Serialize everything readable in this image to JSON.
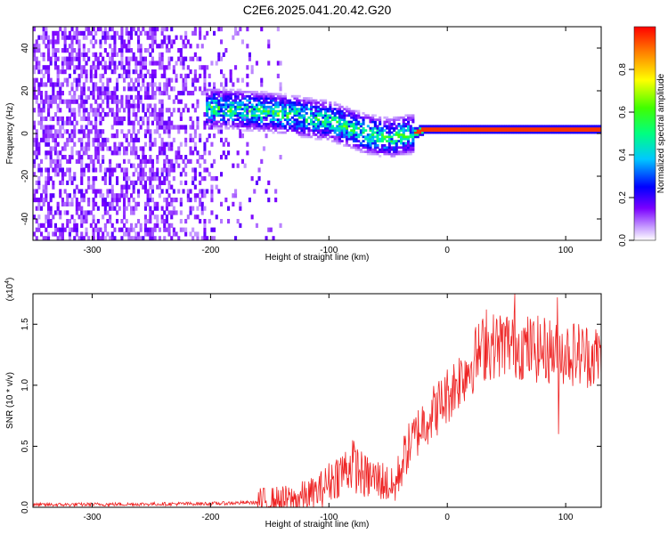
{
  "title": "C2E6.2025.041.20.42.G20",
  "chart_data": [
    {
      "type": "heatmap",
      "xlabel": "Height of straight line (km)",
      "ylabel": "Frequency (Hz)",
      "xlim": [
        -350,
        130
      ],
      "ylim": [
        -50,
        50
      ],
      "x_ticks": [
        -300,
        -200,
        -100,
        0,
        100
      ],
      "x_tick_labels": [
        "-300",
        "-200",
        "-100",
        "0",
        "100"
      ],
      "y_ticks": [
        -40,
        -20,
        0,
        20,
        40
      ],
      "y_tick_labels": [
        "-40",
        "-20",
        "0",
        "20",
        "40"
      ],
      "colorbar": {
        "label": "Normalized spectral amplitude",
        "range": [
          0,
          1
        ],
        "ticks": [
          0.0,
          0.2,
          0.4,
          0.6,
          0.8
        ],
        "tick_labels": [
          "0.0",
          "0.2",
          "0.4",
          "0.6",
          "0.8"
        ]
      },
      "features": {
        "noise_region_x": [
          -350,
          -140
        ],
        "signal_start_x": -205,
        "carrier_track": [
          {
            "x": -200,
            "y": 12
          },
          {
            "x": -150,
            "y": 10
          },
          {
            "x": -100,
            "y": 6
          },
          {
            "x": -70,
            "y": 0
          },
          {
            "x": -50,
            "y": -2
          },
          {
            "x": -30,
            "y": 0
          },
          {
            "x": -20,
            "y": 2
          },
          {
            "x": 0,
            "y": 2
          },
          {
            "x": 130,
            "y": 2
          }
        ],
        "carrier_band_halfwidth": 2
      }
    },
    {
      "type": "line",
      "xlabel": "Height of straight line (km)",
      "ylabel": "SNR (10 * v/v)",
      "y_multiplier_label": "(x10",
      "y_multiplier_exp": "4",
      "y_multiplier_close": ")",
      "xlim": [
        -350,
        130
      ],
      "ylim": [
        0,
        1.75
      ],
      "x_ticks": [
        -300,
        -200,
        -100,
        0,
        100
      ],
      "x_tick_labels": [
        "-300",
        "-200",
        "-100",
        "0",
        "100"
      ],
      "y_ticks": [
        0.0,
        0.5,
        1.0,
        1.5
      ],
      "y_tick_labels": [
        "0.0",
        "0.5",
        "1.0",
        "1.5"
      ],
      "color": "#ee2222",
      "series_envelope": [
        {
          "x": -350,
          "y": 0.02
        },
        {
          "x": -200,
          "y": 0.03
        },
        {
          "x": -160,
          "y": 0.04
        },
        {
          "x": -130,
          "y": 0.06
        },
        {
          "x": -110,
          "y": 0.12
        },
        {
          "x": -95,
          "y": 0.25
        },
        {
          "x": -80,
          "y": 0.35
        },
        {
          "x": -70,
          "y": 0.25
        },
        {
          "x": -55,
          "y": 0.22
        },
        {
          "x": -45,
          "y": 0.15
        },
        {
          "x": -35,
          "y": 0.45
        },
        {
          "x": -20,
          "y": 0.7
        },
        {
          "x": -5,
          "y": 0.85
        },
        {
          "x": 10,
          "y": 1.05
        },
        {
          "x": 30,
          "y": 1.3
        },
        {
          "x": 50,
          "y": 1.35
        },
        {
          "x": 70,
          "y": 1.3
        },
        {
          "x": 90,
          "y": 1.28
        },
        {
          "x": 110,
          "y": 1.26
        },
        {
          "x": 130,
          "y": 1.23
        }
      ],
      "spikes": [
        {
          "x": 33,
          "y": 1.62
        },
        {
          "x": 57,
          "y": 1.75
        },
        {
          "x": 93,
          "y": 1.72
        },
        {
          "x": 94,
          "y": 0.6
        },
        {
          "x": -80,
          "y": 0.55
        }
      ]
    }
  ]
}
